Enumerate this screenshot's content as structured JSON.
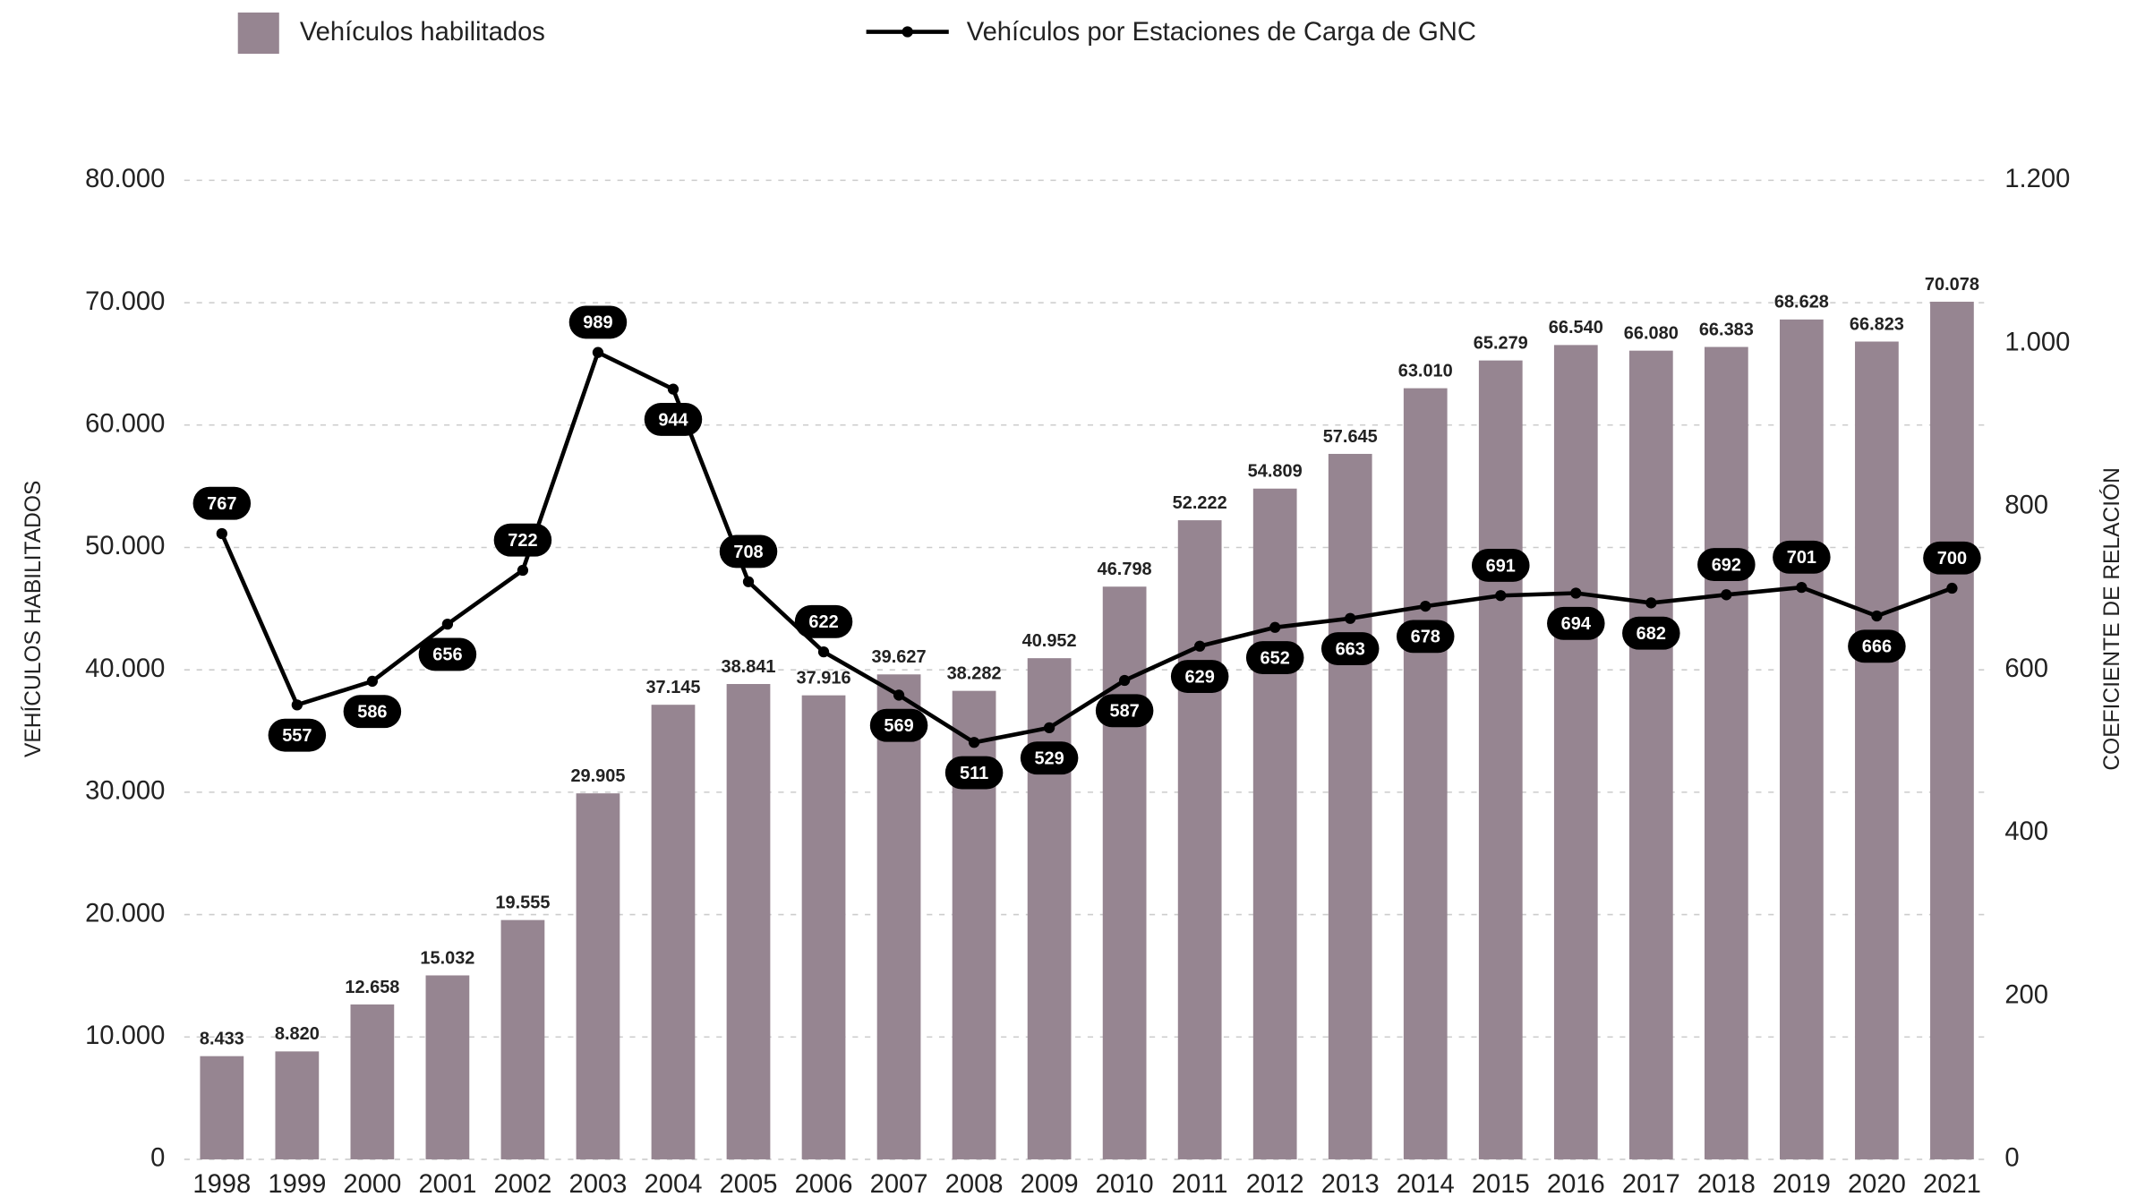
{
  "chart_data": {
    "type": "bar_line",
    "y_label": "VEHÍCULOS HABILITADOS",
    "y2_label": "COEFICIENTE DE RELACIÓN",
    "categories": [
      "1998",
      "1999",
      "2000",
      "2001",
      "2002",
      "2003",
      "2004",
      "2005",
      "2006",
      "2007",
      "2008",
      "2009",
      "2010",
      "2011",
      "2012",
      "2013",
      "2014",
      "2015",
      "2016",
      "2017",
      "2018",
      "2019",
      "2020",
      "2021"
    ],
    "series": [
      {
        "name": "Vehículos habilitados",
        "type": "bar",
        "color": "#968591",
        "values": [
          8433,
          8820,
          12658,
          15032,
          19555,
          29905,
          37145,
          38841,
          37916,
          39627,
          38282,
          40952,
          46798,
          52222,
          54809,
          57645,
          63010,
          65279,
          66540,
          66080,
          66383,
          68628,
          66823,
          70078
        ],
        "value_labels": [
          "8.433",
          "8.820",
          "12.658",
          "15.032",
          "19.555",
          "29.905",
          "37.145",
          "38.841",
          "37.916",
          "39.627",
          "38.282",
          "40.952",
          "46.798",
          "52.222",
          "54.809",
          "57.645",
          "63.010",
          "65.279",
          "66.540",
          "66.080",
          "66.383",
          "68.628",
          "66.823",
          "70.078"
        ]
      },
      {
        "name": "Vehículos por Estaciones de Carga de GNC",
        "type": "line",
        "axis": "y2",
        "color": "#000000",
        "values": [
          767,
          557,
          586,
          656,
          722,
          989,
          944,
          708,
          622,
          569,
          511,
          529,
          587,
          629,
          652,
          663,
          678,
          691,
          694,
          682,
          692,
          701,
          666,
          700
        ]
      }
    ],
    "ylim": [
      0,
      80000
    ],
    "yticks": [
      0,
      {
        "value": 10000,
        "label": "10.000"
      },
      {
        "value": 20000,
        "label": "20.000"
      },
      {
        "value": 30000,
        "label": "30.000"
      },
      {
        "value": 40000,
        "label": "40.000"
      },
      {
        "value": 50000,
        "label": "50.000"
      },
      {
        "value": 60000,
        "label": "60.000"
      },
      {
        "value": 70000,
        "label": "70.000"
      },
      {
        "value": 80000,
        "label": "80.000"
      }
    ],
    "y2lim": [
      0,
      1200
    ],
    "y2ticks": [
      0,
      200,
      400,
      600,
      800,
      {
        "value": 1000,
        "label": "1.000"
      },
      {
        "value": 1200,
        "label": "1.200"
      }
    ],
    "grid": true
  }
}
